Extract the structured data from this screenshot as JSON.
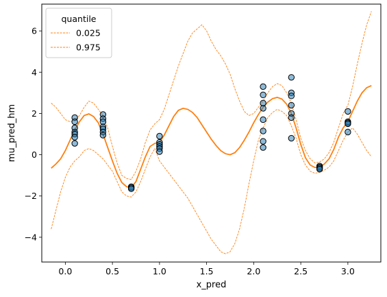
{
  "chart_data": {
    "type": "line",
    "xlabel": "x_pred",
    "ylabel": "mu_pred_hm",
    "xlim": [
      -0.25,
      3.35
    ],
    "ylim": [
      -5.2,
      7.3
    ],
    "xticks": [
      0.0,
      0.5,
      1.0,
      1.5,
      2.0,
      2.5,
      3.0
    ],
    "xtick_labels": [
      "0.0",
      "0.5",
      "1.0",
      "1.5",
      "2.0",
      "2.5",
      "3.0"
    ],
    "yticks": [
      -4,
      -2,
      0,
      2,
      4,
      6
    ],
    "ytick_labels": [
      "−4",
      "−2",
      "0",
      "2",
      "4",
      "6"
    ],
    "grid": false,
    "legend": {
      "title": "quantile",
      "placement": "top-left",
      "entries": [
        "0.025",
        "0.975"
      ]
    },
    "colors": {
      "line": "#ff7f0e",
      "points": "#1f77b4"
    },
    "mean_line": {
      "x": [
        -0.15,
        -0.1,
        -0.05,
        0.0,
        0.05,
        0.1,
        0.15,
        0.2,
        0.25,
        0.3,
        0.35,
        0.4,
        0.45,
        0.5,
        0.55,
        0.6,
        0.65,
        0.7,
        0.75,
        0.8,
        0.85,
        0.9,
        0.95,
        1.0,
        1.05,
        1.1,
        1.15,
        1.2,
        1.25,
        1.3,
        1.35,
        1.4,
        1.45,
        1.5,
        1.55,
        1.6,
        1.65,
        1.7,
        1.75,
        1.8,
        1.85,
        1.9,
        1.95,
        2.0,
        2.05,
        2.1,
        2.15,
        2.2,
        2.25,
        2.3,
        2.35,
        2.4,
        2.45,
        2.5,
        2.55,
        2.6,
        2.65,
        2.7,
        2.75,
        2.8,
        2.85,
        2.9,
        2.95,
        3.0,
        3.05,
        3.1,
        3.15,
        3.2,
        3.25
      ],
      "y": [
        -0.65,
        -0.45,
        -0.2,
        0.2,
        0.7,
        1.2,
        1.6,
        1.9,
        1.98,
        1.85,
        1.55,
        1.0,
        0.35,
        -0.3,
        -0.9,
        -1.35,
        -1.55,
        -1.6,
        -1.3,
        -0.7,
        -0.1,
        0.4,
        0.55,
        0.6,
        0.95,
        1.4,
        1.85,
        2.15,
        2.25,
        2.2,
        2.05,
        1.8,
        1.45,
        1.1,
        0.75,
        0.45,
        0.2,
        0.05,
        0.0,
        0.1,
        0.35,
        0.7,
        1.1,
        1.55,
        1.95,
        2.3,
        2.55,
        2.72,
        2.78,
        2.7,
        2.45,
        2.0,
        1.3,
        0.5,
        -0.15,
        -0.5,
        -0.62,
        -0.6,
        -0.45,
        -0.2,
        0.25,
        0.85,
        1.3,
        1.6,
        2.1,
        2.6,
        3.0,
        3.25,
        3.35
      ]
    },
    "series": [
      {
        "name": "0.025",
        "x": [
          -0.15,
          -0.1,
          -0.05,
          0.0,
          0.05,
          0.1,
          0.15,
          0.2,
          0.25,
          0.3,
          0.35,
          0.4,
          0.45,
          0.5,
          0.55,
          0.6,
          0.65,
          0.7,
          0.75,
          0.8,
          0.85,
          0.9,
          0.95,
          1.0,
          1.05,
          1.1,
          1.15,
          1.2,
          1.25,
          1.3,
          1.35,
          1.4,
          1.45,
          1.5,
          1.55,
          1.6,
          1.65,
          1.7,
          1.75,
          1.8,
          1.85,
          1.9,
          1.95,
          2.0,
          2.05,
          2.1,
          2.15,
          2.2,
          2.25,
          2.3,
          2.35,
          2.4,
          2.45,
          2.5,
          2.55,
          2.6,
          2.65,
          2.7,
          2.75,
          2.8,
          2.85,
          2.9,
          2.95,
          3.0,
          3.05,
          3.1,
          3.15,
          3.2,
          3.25
        ],
        "y": [
          -3.6,
          -2.7,
          -1.8,
          -1.1,
          -0.6,
          -0.3,
          -0.1,
          0.2,
          0.3,
          0.2,
          0.0,
          -0.2,
          -0.5,
          -0.8,
          -1.3,
          -1.8,
          -2.0,
          -2.05,
          -1.8,
          -1.3,
          -0.7,
          -0.1,
          0.3,
          -0.3,
          -0.6,
          -0.9,
          -1.2,
          -1.5,
          -1.8,
          -2.1,
          -2.5,
          -2.9,
          -3.3,
          -3.7,
          -4.1,
          -4.4,
          -4.7,
          -4.8,
          -4.7,
          -4.3,
          -3.6,
          -2.6,
          -1.4,
          -0.3,
          0.7,
          1.3,
          1.8,
          2.05,
          2.2,
          2.1,
          1.9,
          1.4,
          0.8,
          0.0,
          -0.5,
          -0.8,
          -0.9,
          -0.85,
          -0.75,
          -0.6,
          -0.3,
          0.2,
          0.7,
          1.1,
          1.3,
          1.0,
          0.6,
          0.2,
          -0.1
        ]
      },
      {
        "name": "0.975",
        "x": [
          -0.15,
          -0.1,
          -0.05,
          0.0,
          0.05,
          0.1,
          0.15,
          0.2,
          0.25,
          0.3,
          0.35,
          0.4,
          0.45,
          0.5,
          0.55,
          0.6,
          0.65,
          0.7,
          0.75,
          0.8,
          0.85,
          0.9,
          0.95,
          1.0,
          1.05,
          1.1,
          1.15,
          1.2,
          1.25,
          1.3,
          1.35,
          1.4,
          1.45,
          1.5,
          1.55,
          1.6,
          1.65,
          1.7,
          1.75,
          1.8,
          1.85,
          1.9,
          1.95,
          2.0,
          2.05,
          2.1,
          2.15,
          2.2,
          2.25,
          2.3,
          2.35,
          2.4,
          2.45,
          2.5,
          2.55,
          2.6,
          2.65,
          2.7,
          2.75,
          2.8,
          2.85,
          2.9,
          2.95,
          3.0,
          3.05,
          3.1,
          3.15,
          3.2,
          3.25
        ],
        "y": [
          2.5,
          2.3,
          2.0,
          1.7,
          1.6,
          1.65,
          1.9,
          2.3,
          2.6,
          2.5,
          2.2,
          1.9,
          1.3,
          0.4,
          -0.4,
          -1.0,
          -1.15,
          -1.2,
          -0.8,
          -0.2,
          0.6,
          1.2,
          1.5,
          1.7,
          2.2,
          2.9,
          3.6,
          4.3,
          4.9,
          5.5,
          5.9,
          6.1,
          6.3,
          6.0,
          5.5,
          5.1,
          4.8,
          4.4,
          3.9,
          3.2,
          2.6,
          2.1,
          1.9,
          2.0,
          2.3,
          2.6,
          3.0,
          3.3,
          3.45,
          3.35,
          3.0,
          2.5,
          1.7,
          0.8,
          0.2,
          -0.2,
          -0.4,
          -0.35,
          -0.2,
          0.1,
          0.6,
          1.3,
          2.0,
          2.4,
          3.3,
          4.4,
          5.4,
          6.3,
          6.95
        ]
      }
    ],
    "scatter_points": [
      [
        0.1,
        1.8
      ],
      [
        0.1,
        1.6
      ],
      [
        0.1,
        1.3
      ],
      [
        0.1,
        1.1
      ],
      [
        0.1,
        1.0
      ],
      [
        0.1,
        0.85
      ],
      [
        0.1,
        0.55
      ],
      [
        0.4,
        1.95
      ],
      [
        0.4,
        1.75
      ],
      [
        0.4,
        1.6
      ],
      [
        0.4,
        1.35
      ],
      [
        0.4,
        1.25
      ],
      [
        0.4,
        1.1
      ],
      [
        0.4,
        0.95
      ],
      [
        0.7,
        -1.55
      ],
      [
        0.7,
        -1.6
      ],
      [
        0.7,
        -1.65
      ],
      [
        1.0,
        0.9
      ],
      [
        1.0,
        0.6
      ],
      [
        1.0,
        0.5
      ],
      [
        1.0,
        0.4
      ],
      [
        1.0,
        0.3
      ],
      [
        1.0,
        0.15
      ],
      [
        2.1,
        3.3
      ],
      [
        2.1,
        2.9
      ],
      [
        2.1,
        2.5
      ],
      [
        2.1,
        2.25
      ],
      [
        2.1,
        1.7
      ],
      [
        2.1,
        1.15
      ],
      [
        2.1,
        0.65
      ],
      [
        2.1,
        0.35
      ],
      [
        2.4,
        3.75
      ],
      [
        2.4,
        3.0
      ],
      [
        2.4,
        2.85
      ],
      [
        2.4,
        2.4
      ],
      [
        2.4,
        2.0
      ],
      [
        2.4,
        1.8
      ],
      [
        2.4,
        0.8
      ],
      [
        2.7,
        -0.55
      ],
      [
        2.7,
        -0.6
      ],
      [
        2.7,
        -0.65
      ],
      [
        2.7,
        -0.7
      ],
      [
        3.0,
        2.1
      ],
      [
        3.0,
        1.6
      ],
      [
        3.0,
        1.55
      ],
      [
        3.0,
        1.5
      ],
      [
        3.0,
        1.1
      ]
    ]
  }
}
